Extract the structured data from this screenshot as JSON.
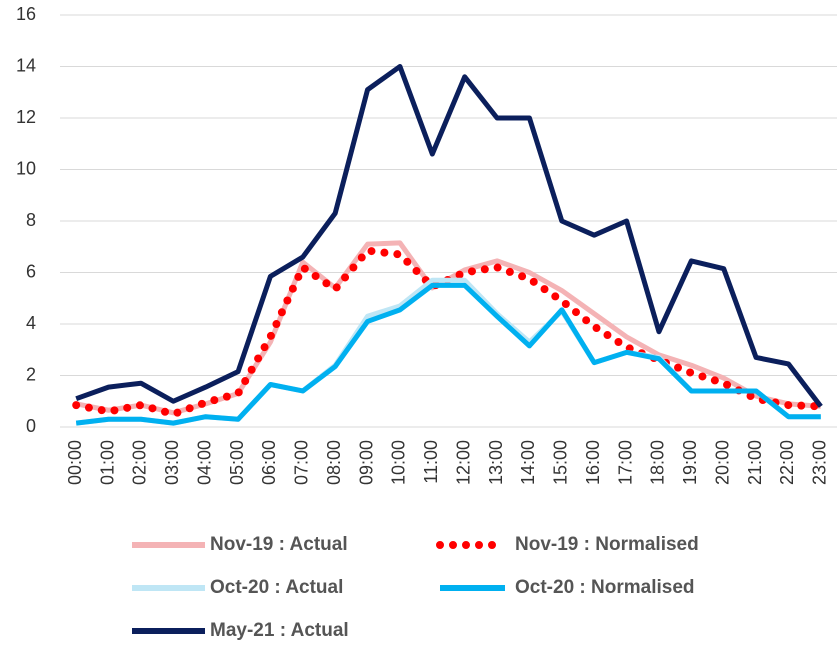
{
  "chart_data": {
    "type": "line",
    "categories": [
      "00:00",
      "01:00",
      "02:00",
      "03:00",
      "04:00",
      "05:00",
      "06:00",
      "07:00",
      "08:00",
      "09:00",
      "10:00",
      "11:00",
      "12:00",
      "13:00",
      "14:00",
      "15:00",
      "16:00",
      "17:00",
      "18:00",
      "19:00",
      "20:00",
      "21:00",
      "22:00",
      "23:00"
    ],
    "series": [
      {
        "name": "Nov-19 : Actual",
        "color": "#f4b3b5",
        "style": "solid",
        "values": [
          0.9,
          0.65,
          0.85,
          0.55,
          0.9,
          1.3,
          3.3,
          6.4,
          5.4,
          7.1,
          7.15,
          5.4,
          6.1,
          6.45,
          6.0,
          5.3,
          4.4,
          3.5,
          2.8,
          2.4,
          1.9,
          1.2,
          0.9,
          0.8
        ]
      },
      {
        "name": "Nov-19 : Normalised",
        "color": "#ff0000",
        "style": "dotted",
        "values": [
          0.85,
          0.6,
          0.85,
          0.5,
          0.95,
          1.3,
          3.5,
          6.2,
          5.35,
          6.85,
          6.7,
          5.45,
          6.0,
          6.2,
          5.75,
          4.9,
          3.9,
          3.1,
          2.6,
          2.1,
          1.7,
          1.1,
          0.85,
          0.8
        ]
      },
      {
        "name": "Oct-20 : Actual",
        "color": "#bfe6f5",
        "style": "solid",
        "values": [
          0.15,
          0.3,
          0.3,
          0.15,
          0.4,
          0.3,
          1.65,
          1.4,
          2.4,
          4.3,
          4.7,
          5.7,
          5.7,
          4.4,
          3.3,
          4.5,
          2.5,
          2.9,
          2.7,
          1.4,
          1.4,
          1.4,
          0.4,
          0.4
        ]
      },
      {
        "name": "Oct-20 : Normalised",
        "color": "#00b0f0",
        "style": "solid",
        "values": [
          0.15,
          0.3,
          0.3,
          0.15,
          0.4,
          0.3,
          1.65,
          1.4,
          2.35,
          4.1,
          4.55,
          5.5,
          5.5,
          4.3,
          3.15,
          4.55,
          2.5,
          2.9,
          2.65,
          1.4,
          1.4,
          1.4,
          0.4,
          0.4
        ]
      },
      {
        "name": "May-21 : Actual",
        "color": "#0b1f5c",
        "style": "solid",
        "values": [
          1.1,
          1.55,
          1.7,
          1.0,
          1.55,
          2.15,
          5.85,
          6.6,
          8.3,
          13.1,
          14.0,
          10.6,
          13.6,
          12.0,
          12.0,
          8.0,
          7.45,
          8.0,
          3.7,
          6.45,
          6.15,
          2.7,
          2.45,
          0.8
        ]
      }
    ],
    "ylim": [
      0,
      16
    ],
    "yticks": [
      0,
      2,
      4,
      6,
      8,
      10,
      12,
      14,
      16
    ],
    "grid": true,
    "legend": "bottom"
  }
}
